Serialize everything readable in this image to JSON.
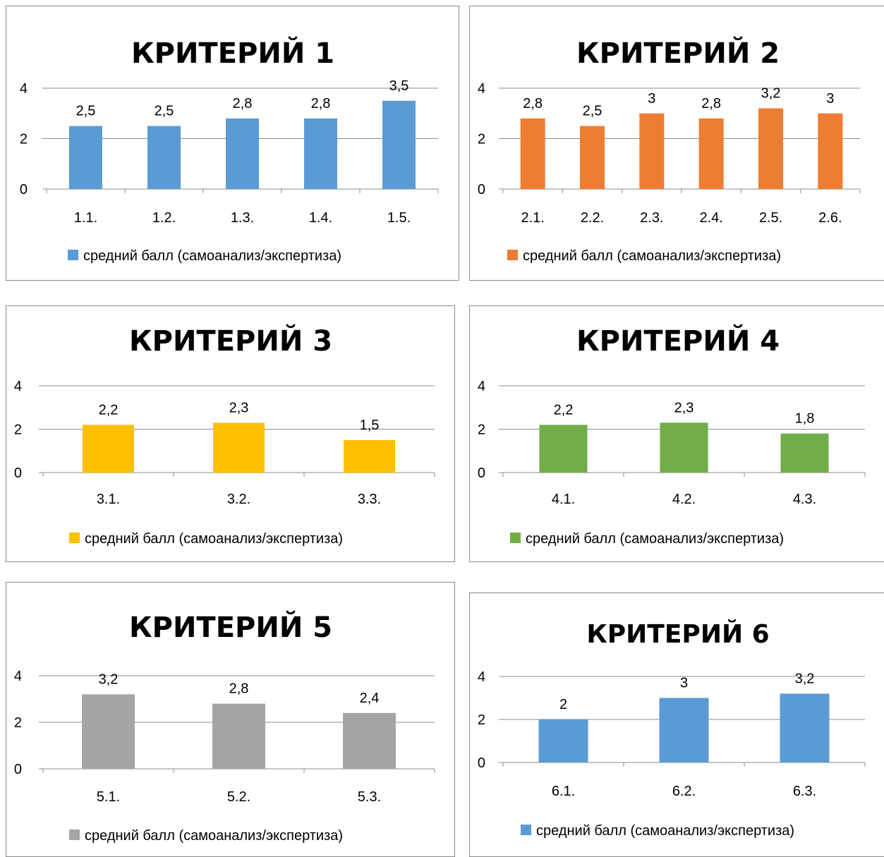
{
  "chart_data": [
    {
      "type": "bar",
      "title": "КРИТЕРИЙ 1",
      "categories": [
        "1.1.",
        "1.2.",
        "1.3.",
        "1.4.",
        "1.5."
      ],
      "series": [
        {
          "name": "средний балл (самоанализ/экспертиза)",
          "values": [
            2.5,
            2.5,
            2.8,
            2.8,
            3.5
          ]
        }
      ],
      "value_labels": [
        "2,5",
        "2,5",
        "2,8",
        "2,8",
        "3,5"
      ],
      "y_ticks": [
        "0",
        "2",
        "4"
      ],
      "ylim": [
        0,
        4
      ],
      "color": "#5b9bd5",
      "grid": true,
      "legend_position": "bottom"
    },
    {
      "type": "bar",
      "title": "КРИТЕРИЙ 2",
      "categories": [
        "2.1.",
        "2.2.",
        "2.3.",
        "2.4.",
        "2.5.",
        "2.6."
      ],
      "series": [
        {
          "name": "средний балл (самоанализ/экспертиза)",
          "values": [
            2.8,
            2.5,
            3,
            2.8,
            3.2,
            3
          ]
        }
      ],
      "value_labels": [
        "2,8",
        "2,5",
        "3",
        "2,8",
        "3,2",
        "3"
      ],
      "y_ticks": [
        "0",
        "2",
        "4"
      ],
      "ylim": [
        0,
        4
      ],
      "color": "#ed7d31",
      "grid": true,
      "legend_position": "bottom"
    },
    {
      "type": "bar",
      "title": "КРИТЕРИЙ 3",
      "categories": [
        "3.1.",
        "3.2.",
        "3.3."
      ],
      "series": [
        {
          "name": "средний балл (самоанализ/экспертиза)",
          "values": [
            2.2,
            2.3,
            1.5
          ]
        }
      ],
      "value_labels": [
        "2,2",
        "2,3",
        "1,5"
      ],
      "y_ticks": [
        "0",
        "2",
        "4"
      ],
      "ylim": [
        0,
        4
      ],
      "color": "#ffc000",
      "grid": true,
      "legend_position": "bottom"
    },
    {
      "type": "bar",
      "title": "КРИТЕРИЙ 4",
      "categories": [
        "4.1.",
        "4.2.",
        "4.3."
      ],
      "series": [
        {
          "name": "средний балл (самоанализ/экспертиза)",
          "values": [
            2.2,
            2.3,
            1.8
          ]
        }
      ],
      "value_labels": [
        "2,2",
        "2,3",
        "1,8"
      ],
      "y_ticks": [
        "0",
        "2",
        "4"
      ],
      "ylim": [
        0,
        4
      ],
      "color": "#70ad47",
      "grid": true,
      "legend_position": "bottom"
    },
    {
      "type": "bar",
      "title": "КРИТЕРИЙ 5",
      "categories": [
        "5.1.",
        "5.2.",
        "5.3."
      ],
      "series": [
        {
          "name": "средний балл (самоанализ/экспертиза)",
          "values": [
            3.2,
            2.8,
            2.4
          ]
        }
      ],
      "value_labels": [
        "3,2",
        "2,8",
        "2,4"
      ],
      "y_ticks": [
        "0",
        "2",
        "4"
      ],
      "ylim": [
        0,
        4
      ],
      "color": "#a5a5a5",
      "grid": true,
      "legend_position": "bottom"
    },
    {
      "type": "bar",
      "title": "КРИТЕРИЙ 6",
      "categories": [
        "6.1.",
        "6.2.",
        "6.3."
      ],
      "series": [
        {
          "name": "средний балл (самоанализ/экспертиза)",
          "values": [
            2,
            3,
            3.2
          ]
        }
      ],
      "value_labels": [
        "2",
        "3",
        "3,2"
      ],
      "y_ticks": [
        "0",
        "2",
        "4"
      ],
      "ylim": [
        0,
        4
      ],
      "color": "#5b9bd5",
      "grid": true,
      "legend_position": "bottom"
    }
  ]
}
